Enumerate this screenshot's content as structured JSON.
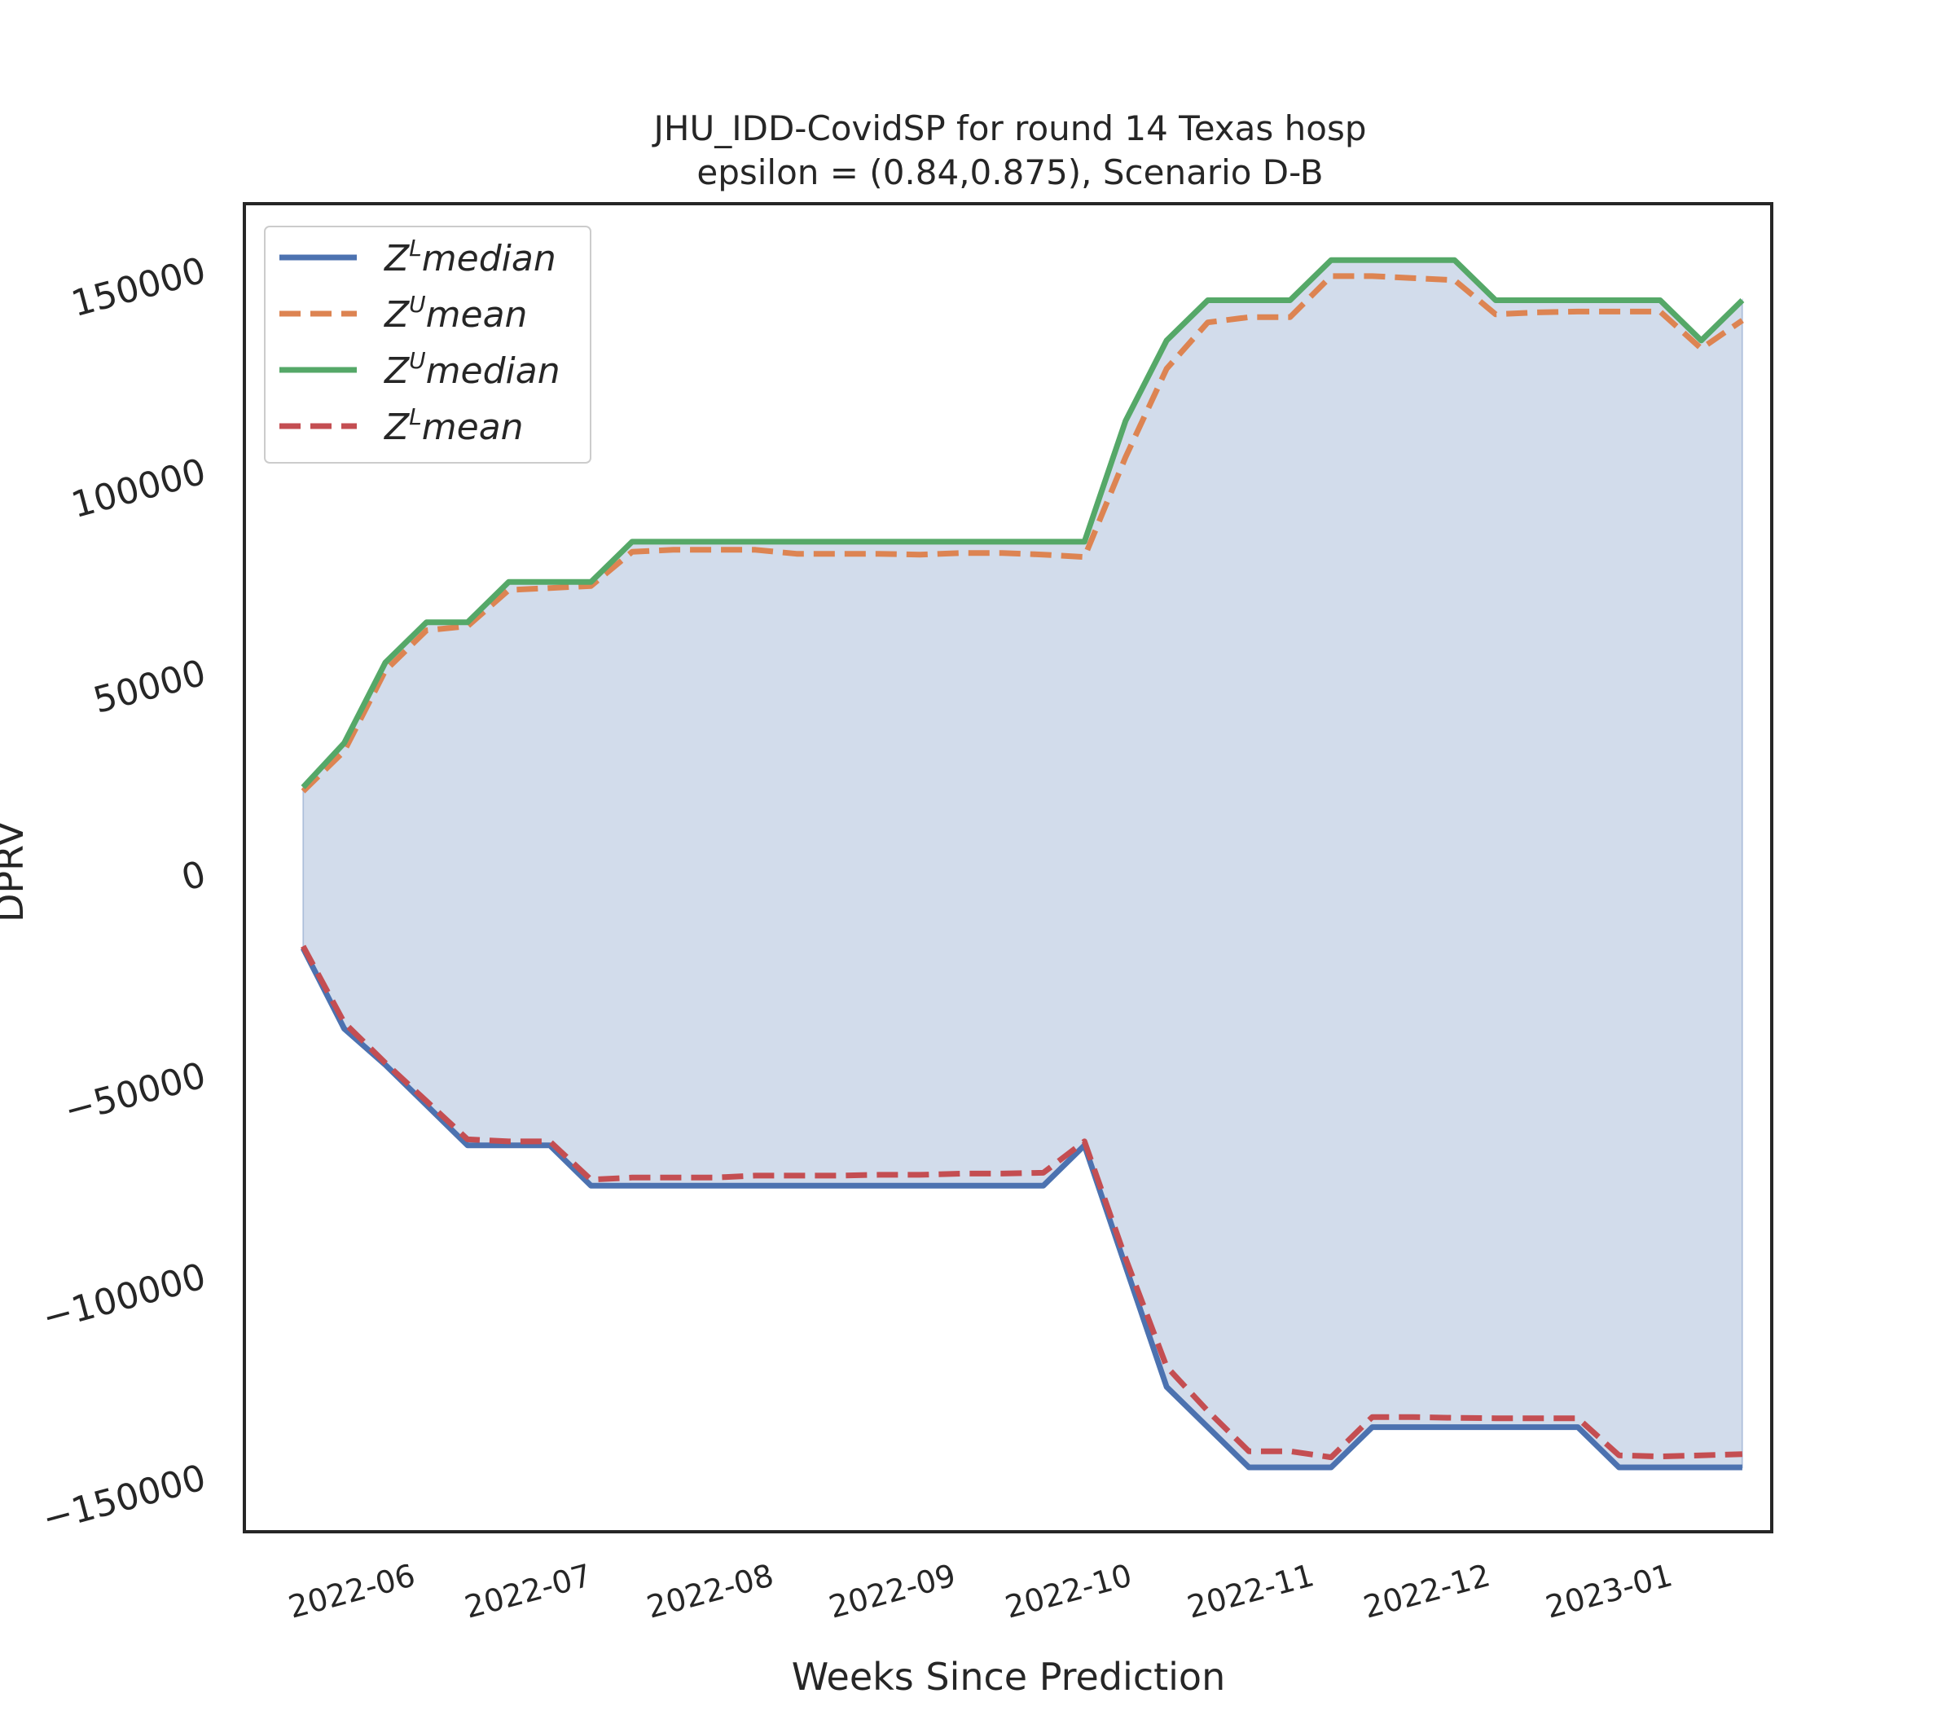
{
  "chart_data": {
    "type": "line",
    "title": "JHU_IDD-CovidSP for round 14 Texas  hosp",
    "subtitle": "epsilon = (0.84,0.875), Scenario D-B",
    "xlabel": "Weeks Since Prediction",
    "ylabel": "DPRV",
    "ylim": [
      -164000,
      166000
    ],
    "xlim": [
      "2022-05-04",
      "2023-01-19"
    ],
    "grid": false,
    "legend_position": "top-left",
    "x_ticks": [
      "2022-06",
      "2022-07",
      "2022-08",
      "2022-09",
      "2022-10",
      "2022-11",
      "2022-12",
      "2023-01"
    ],
    "y_ticks": [
      150000,
      100000,
      50000,
      0,
      -50000,
      -100000,
      -150000
    ],
    "y_tick_labels": [
      "150000",
      "100000",
      "50000",
      "0",
      "−50000",
      "−100000",
      "−150000"
    ],
    "x": [
      "2022-05-14",
      "2022-05-21",
      "2022-05-28",
      "2022-06-04",
      "2022-06-11",
      "2022-06-18",
      "2022-06-25",
      "2022-07-02",
      "2022-07-09",
      "2022-07-16",
      "2022-07-23",
      "2022-07-30",
      "2022-08-06",
      "2022-08-13",
      "2022-08-20",
      "2022-08-27",
      "2022-09-03",
      "2022-09-10",
      "2022-09-17",
      "2022-09-24",
      "2022-10-01",
      "2022-10-08",
      "2022-10-15",
      "2022-10-22",
      "2022-10-29",
      "2022-11-05",
      "2022-11-12",
      "2022-11-19",
      "2022-11-26",
      "2022-12-03",
      "2022-12-10",
      "2022-12-17",
      "2022-12-24",
      "2022-12-31",
      "2023-01-07",
      "2023-01-14"
    ],
    "series": [
      {
        "name": "median",
        "sup": "L",
        "color": "#4c72b0",
        "dash": false,
        "values": [
          -19000,
          -39000,
          -48000,
          -58000,
          -68000,
          -68000,
          -68000,
          -78000,
          -78000,
          -78000,
          -78000,
          -78000,
          -78000,
          -78000,
          -78000,
          -78000,
          -78000,
          -78000,
          -78000,
          -68000,
          -98000,
          -128000,
          -138000,
          -148000,
          -148000,
          -148000,
          -138000,
          -138000,
          -138000,
          -138000,
          -138000,
          -138000,
          -148000,
          -148000,
          -148000,
          -148000
        ]
      },
      {
        "name": "mean",
        "sup": "U",
        "color": "#dd8452",
        "dash": true,
        "values": [
          20000,
          30000,
          50000,
          60000,
          61000,
          70000,
          70500,
          71000,
          79500,
          80000,
          80000,
          80000,
          79000,
          79000,
          79000,
          78800,
          79200,
          79200,
          78800,
          78200,
          103000,
          125000,
          136500,
          137800,
          137800,
          148000,
          148000,
          147500,
          147000,
          138500,
          139000,
          139200,
          139200,
          139200,
          130000,
          137000
        ]
      },
      {
        "name": "median",
        "sup": "U",
        "color": "#55a868",
        "dash": false,
        "values": [
          21000,
          32000,
          52000,
          62000,
          62000,
          72000,
          72000,
          72000,
          82000,
          82000,
          82000,
          82000,
          82000,
          82000,
          82000,
          82000,
          82000,
          82000,
          82000,
          82000,
          112000,
          132000,
          142000,
          142000,
          142000,
          152000,
          152000,
          152000,
          152000,
          142000,
          142000,
          142000,
          142000,
          142000,
          132000,
          142000
        ]
      },
      {
        "name": "mean",
        "sup": "L",
        "color": "#c44e52",
        "dash": true,
        "values": [
          -18500,
          -37500,
          -47500,
          -57000,
          -66500,
          -67000,
          -67000,
          -76500,
          -76000,
          -76000,
          -76000,
          -75500,
          -75500,
          -75500,
          -75300,
          -75300,
          -75000,
          -75000,
          -74800,
          -67000,
          -96000,
          -123000,
          -134000,
          -144000,
          -144000,
          -145500,
          -135500,
          -135500,
          -135700,
          -135800,
          -135800,
          -135800,
          -145000,
          -145300,
          -145000,
          -144700
        ]
      }
    ],
    "fill_between": {
      "lower": "series.0",
      "upper": "series.2",
      "color": "#4c72b0",
      "alpha": 0.25
    }
  }
}
